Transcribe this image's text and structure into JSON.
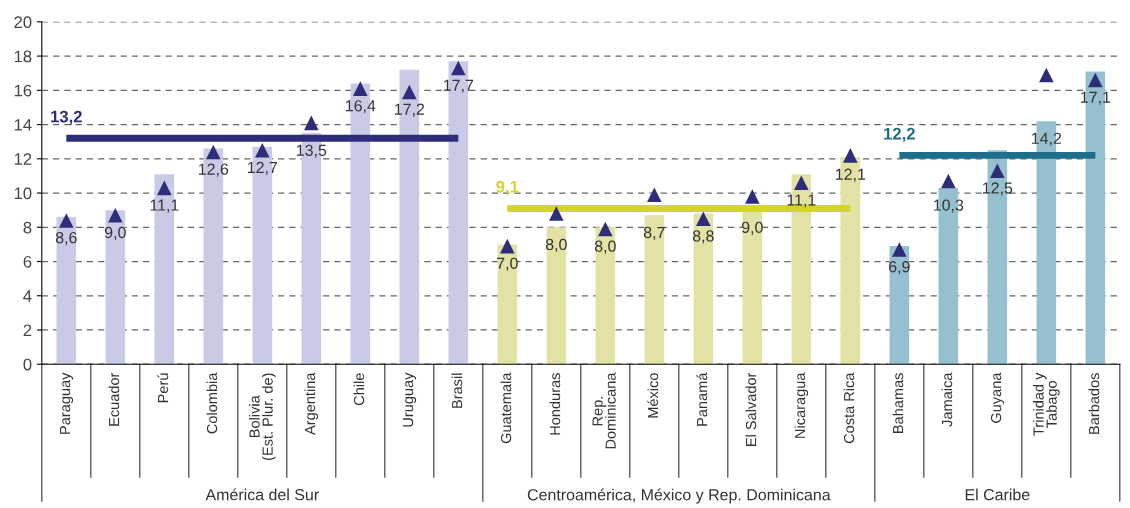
{
  "chart_data": {
    "type": "bar",
    "categories": [
      "Paraguay",
      "Ecuador",
      "Perú",
      "Colombia",
      "Bolivia\n(Est. Plur. de)",
      "Argentina",
      "Chile",
      "Uruguay",
      "Brasil",
      "Guatemala",
      "Honduras",
      "Rep.\nDominicana",
      "México",
      "Panamá",
      "El Salvador",
      "Nicaragua",
      "Costa Rica",
      "Bahamas",
      "Jamaica",
      "Guyana",
      "Trinidad y\nTabago",
      "Barbados"
    ],
    "series": [
      {
        "values": [
          8.6,
          9.0,
          11.1,
          12.6,
          12.7,
          13.5,
          16.4,
          17.2,
          17.7,
          7.0,
          8.0,
          8.0,
          8.7,
          8.8,
          9.0,
          11.1,
          12.1,
          6.9,
          10.3,
          12.5,
          14.2,
          17.1
        ],
        "value_labels": [
          "8,6",
          "9,0",
          "11,1",
          "12,6",
          "12,7",
          "13,5",
          "16,4",
          "17,2",
          "17,7",
          "7,0",
          "8,0",
          "8,0",
          "8,7",
          "8,8",
          "9,0",
          "11,1",
          "12,1",
          "6,9",
          "10,3",
          "12,5",
          "14,2",
          "17,1"
        ],
        "colors": [
          "#c9cbe6",
          "#c9cbe6",
          "#c9cbe6",
          "#c9cbe6",
          "#c9cbe6",
          "#c9cbe6",
          "#c9cbe6",
          "#c9cbe6",
          "#c9cbe6",
          "#e2e2a4",
          "#e2e2a4",
          "#e2e2a4",
          "#e2e2a4",
          "#e2e2a4",
          "#e2e2a4",
          "#e2e2a4",
          "#e2e2a4",
          "#96c0cf",
          "#96c0cf",
          "#96c0cf",
          "#96c0cf",
          "#96c0cf"
        ]
      },
      {
        "type": "scatter",
        "marker": "triangle",
        "color": "#2e2d7a",
        "values": [
          8.4,
          8.7,
          10.3,
          12.4,
          12.5,
          14.1,
          16.1,
          15.9,
          17.3,
          6.9,
          8.8,
          7.9,
          9.9,
          8.5,
          9.8,
          10.6,
          12.2,
          6.7,
          10.7,
          11.3,
          16.9,
          16.6
        ]
      },
      {
        "type": "line",
        "color": "#2e2d7a",
        "values": [
          13.2,
          13.2,
          13.2,
          13.2,
          13.2,
          13.2,
          13.2,
          13.2,
          13.2,
          null,
          null,
          null,
          null,
          null,
          null,
          null,
          null,
          null,
          null,
          null,
          null,
          null
        ],
        "value_labels": [
          "13,2",
          null,
          null,
          null,
          null,
          null,
          null,
          null,
          null,
          null,
          null,
          null,
          null,
          null,
          null,
          null,
          null,
          null,
          null,
          null,
          null,
          null
        ]
      },
      {
        "type": "line",
        "color": "#d4d42a",
        "values": [
          null,
          null,
          null,
          null,
          null,
          null,
          null,
          null,
          null,
          9.1,
          9.1,
          9.1,
          9.1,
          9.1,
          9.1,
          9.1,
          9.1,
          null,
          null,
          null,
          null,
          null
        ],
        "value_labels": [
          null,
          null,
          null,
          null,
          null,
          null,
          null,
          null,
          null,
          "9,1",
          null,
          null,
          null,
          null,
          null,
          null,
          null,
          null,
          null,
          null,
          null,
          null
        ]
      },
      {
        "type": "line",
        "color": "#1f6f8b",
        "values": [
          null,
          null,
          null,
          null,
          null,
          null,
          null,
          null,
          null,
          null,
          null,
          null,
          null,
          null,
          null,
          null,
          null,
          12.2,
          12.2,
          12.2,
          12.2,
          12.2
        ],
        "value_labels": [
          null,
          null,
          null,
          null,
          null,
          null,
          null,
          null,
          null,
          null,
          null,
          null,
          null,
          null,
          null,
          null,
          null,
          "12,2",
          null,
          null,
          null,
          null
        ]
      }
    ],
    "annotations": [
      "América del Sur",
      "Centroamérica, México y Rep. Dominicana",
      "El Caribe"
    ],
    "ylim": [
      0,
      20
    ],
    "yticks": [
      0,
      2,
      4,
      6,
      8,
      10,
      12,
      14,
      16,
      18,
      20
    ],
    "grid": "y",
    "legend": false
  }
}
